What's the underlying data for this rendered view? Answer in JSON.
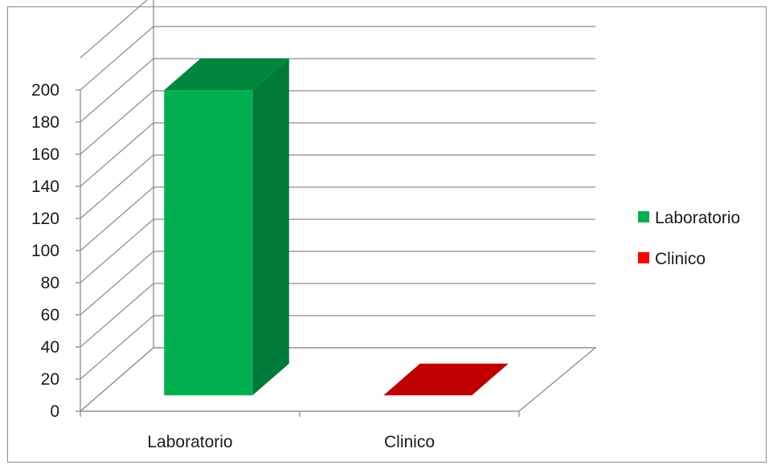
{
  "chart_data": {
    "type": "bar",
    "categories": [
      "Laboratorio",
      "Clinico"
    ],
    "series": [
      {
        "name": "Laboratorio",
        "values": [
          190,
          0
        ],
        "color": "#00b050",
        "side_color": "#007a38",
        "top_color": "#00873d"
      },
      {
        "name": "Clinico",
        "values": [
          0,
          0
        ],
        "color": "#ff0000",
        "side_color": "#990000",
        "top_color": "#c00000"
      }
    ],
    "yticks": [
      "0",
      "20",
      "40",
      "60",
      "80",
      "100",
      "120",
      "140",
      "160",
      "180",
      "200"
    ],
    "ylim": [
      0,
      200
    ],
    "grid": true,
    "legend": "right",
    "style": "3d-column"
  }
}
